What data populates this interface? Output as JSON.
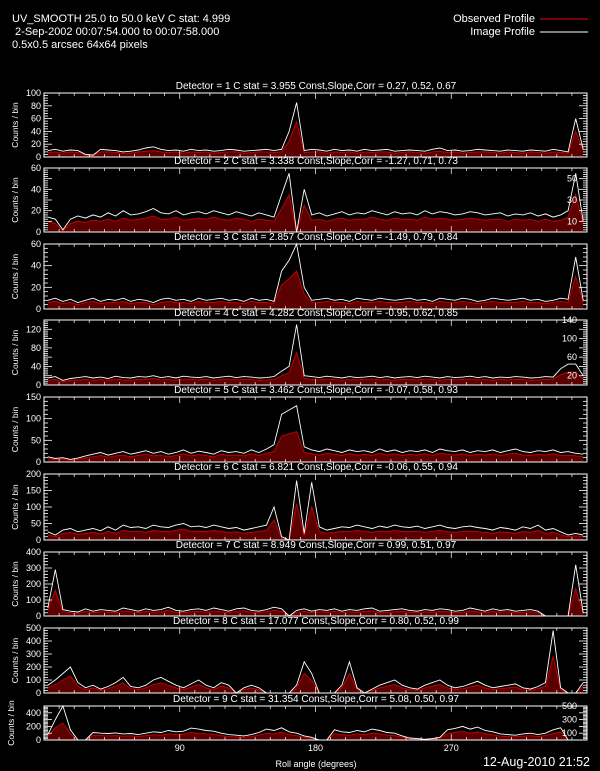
{
  "header": {
    "line1": "UV_SMOOTH 25.0 to 50.0 keV C stat: 4.999",
    "line2": " 2-Sep-2002 00:07:54.000 to 00:07:58.000",
    "line3": "0.5x0.5 arcsec 64x64 pixels"
  },
  "legend": {
    "observed": "Observed Profile",
    "image": "Image Profile",
    "observed_color": "#c00000",
    "image_color": "#ffffff"
  },
  "footer": {
    "xlabel": "Roll angle (degrees)",
    "date": "12-Aug-2010 21:52"
  },
  "colors": {
    "background": "#000000",
    "observed_fill": "#5a0000"
  },
  "chart_data": [
    {
      "type": "line",
      "title": "Detector = 1  C stat = 3.955  Const,Slope,Corr = 0.27, 0.52, 0.67",
      "ylabel": "Counts / bin",
      "xlim": [
        0,
        360
      ],
      "ylim": [
        0,
        100
      ],
      "yticks": [
        0,
        20,
        40,
        60,
        80,
        100
      ],
      "image": [
        10,
        12,
        9,
        11,
        10,
        4,
        3,
        12,
        11,
        10,
        8,
        9,
        11,
        14,
        16,
        12,
        10,
        11,
        9,
        12,
        10,
        11,
        9,
        10,
        12,
        11,
        9,
        10,
        11,
        12,
        10,
        12,
        40,
        85,
        10,
        12,
        11,
        9,
        12,
        10,
        11,
        9,
        12,
        10,
        11,
        12,
        9,
        10,
        11,
        10,
        9,
        12,
        14,
        10,
        11,
        9,
        10,
        12,
        11,
        10,
        9,
        11,
        10,
        9,
        11,
        10,
        9,
        12,
        10,
        8,
        60,
        12
      ],
      "observed": [
        7,
        8,
        6,
        8,
        7,
        3,
        2,
        8,
        8,
        7,
        6,
        6,
        8,
        9,
        10,
        8,
        7,
        8,
        6,
        8,
        7,
        8,
        6,
        7,
        8,
        8,
        6,
        7,
        8,
        8,
        7,
        8,
        25,
        55,
        7,
        8,
        8,
        6,
        8,
        7,
        8,
        6,
        8,
        7,
        8,
        8,
        6,
        7,
        8,
        7,
        6,
        8,
        9,
        7,
        8,
        6,
        7,
        8,
        8,
        7,
        6,
        8,
        7,
        6,
        8,
        7,
        6,
        8,
        7,
        6,
        40,
        9
      ]
    },
    {
      "type": "line",
      "title": "Detector = 2  C stat = 3.338  Const,Slope,Corr = -1.27, 0.71, 0.73",
      "ylabel": "Counts / bin",
      "xlim": [
        0,
        360
      ],
      "ylim": [
        0,
        60
      ],
      "yticks": [
        0,
        10,
        20,
        30,
        40,
        50,
        60
      ],
      "image": [
        14,
        12,
        2,
        12,
        15,
        13,
        16,
        14,
        18,
        15,
        20,
        16,
        17,
        19,
        22,
        18,
        17,
        20,
        16,
        18,
        19,
        17,
        20,
        18,
        16,
        19,
        17,
        15,
        18,
        16,
        14,
        35,
        55,
        0,
        40,
        16,
        18,
        15,
        17,
        19,
        16,
        18,
        17,
        20,
        18,
        16,
        19,
        17,
        18,
        16,
        20,
        17,
        19,
        18,
        16,
        17,
        19,
        18,
        16,
        17,
        18,
        15,
        17,
        16,
        18,
        15,
        17,
        14,
        16,
        20,
        55,
        10
      ],
      "observed": [
        10,
        8,
        1,
        8,
        10,
        9,
        11,
        10,
        12,
        10,
        13,
        11,
        12,
        13,
        15,
        12,
        12,
        14,
        11,
        12,
        13,
        12,
        14,
        12,
        11,
        13,
        12,
        10,
        12,
        11,
        10,
        22,
        35,
        0,
        25,
        11,
        12,
        10,
        12,
        13,
        11,
        12,
        12,
        14,
        12,
        11,
        13,
        12,
        12,
        11,
        14,
        12,
        13,
        12,
        11,
        12,
        13,
        12,
        11,
        12,
        12,
        10,
        12,
        11,
        12,
        10,
        12,
        10,
        11,
        14,
        35,
        7
      ]
    },
    {
      "type": "line",
      "title": "Detector = 3  C stat = 2.857  Const,Slope,Corr = -1.49, 0.79, 0.84",
      "ylabel": "Counts / bin",
      "xlim": [
        0,
        360
      ],
      "ylim": [
        0,
        60
      ],
      "yticks": [
        0,
        20,
        40,
        60
      ],
      "image": [
        8,
        10,
        7,
        9,
        6,
        8,
        10,
        7,
        9,
        8,
        10,
        7,
        9,
        8,
        6,
        9,
        10,
        8,
        9,
        7,
        10,
        8,
        9,
        10,
        8,
        9,
        7,
        10,
        8,
        9,
        7,
        35,
        45,
        62,
        20,
        8,
        9,
        10,
        8,
        9,
        7,
        10,
        9,
        8,
        10,
        9,
        8,
        9,
        10,
        8,
        9,
        7,
        10,
        9,
        8,
        10,
        9,
        7,
        8,
        10,
        9,
        8,
        9,
        10,
        8,
        9,
        7,
        8,
        10,
        9,
        48,
        8
      ],
      "observed": [
        6,
        7,
        5,
        6,
        4,
        6,
        7,
        5,
        6,
        6,
        7,
        5,
        6,
        6,
        4,
        6,
        7,
        6,
        6,
        5,
        7,
        6,
        6,
        7,
        6,
        6,
        5,
        7,
        6,
        6,
        5,
        22,
        28,
        35,
        14,
        6,
        6,
        7,
        6,
        6,
        5,
        7,
        6,
        6,
        7,
        6,
        6,
        6,
        7,
        6,
        6,
        5,
        7,
        6,
        6,
        7,
        6,
        5,
        6,
        7,
        6,
        6,
        6,
        7,
        6,
        6,
        5,
        6,
        7,
        6,
        30,
        6
      ]
    },
    {
      "type": "line",
      "title": "Detector = 4  C stat = 4.282  Const,Slope,Corr = -0.95, 0.62, 0.85",
      "ylabel": "Counts / bin",
      "xlim": [
        0,
        360
      ],
      "ylim": [
        0,
        140
      ],
      "yticks": [
        0,
        20,
        40,
        60,
        80,
        100,
        120,
        140
      ],
      "image": [
        15,
        18,
        10,
        14,
        16,
        18,
        15,
        17,
        14,
        19,
        16,
        15,
        18,
        17,
        20,
        16,
        18,
        15,
        19,
        17,
        16,
        18,
        15,
        17,
        19,
        16,
        18,
        17,
        15,
        16,
        18,
        30,
        40,
        130,
        20,
        18,
        16,
        19,
        17,
        15,
        18,
        16,
        17,
        19,
        16,
        18,
        15,
        17,
        18,
        16,
        19,
        17,
        15,
        18,
        16,
        17,
        19,
        16,
        18,
        15,
        17,
        16,
        18,
        17,
        15,
        16,
        18,
        17,
        35,
        45,
        45,
        20
      ],
      "observed": [
        10,
        12,
        7,
        10,
        11,
        12,
        10,
        12,
        10,
        13,
        11,
        10,
        12,
        12,
        14,
        11,
        12,
        10,
        13,
        12,
        11,
        12,
        10,
        12,
        13,
        11,
        12,
        12,
        10,
        11,
        12,
        20,
        26,
        70,
        14,
        12,
        11,
        13,
        12,
        10,
        12,
        11,
        12,
        13,
        11,
        12,
        10,
        12,
        12,
        11,
        13,
        12,
        10,
        12,
        11,
        12,
        13,
        11,
        12,
        10,
        12,
        11,
        12,
        12,
        10,
        11,
        12,
        12,
        22,
        28,
        28,
        13
      ]
    },
    {
      "type": "line",
      "title": "Detector = 5  C stat = 3.462  Const,Slope,Corr = -0.07, 0.58, 0.93",
      "ylabel": "Counts / bin",
      "xlim": [
        0,
        360
      ],
      "ylim": [
        0,
        150
      ],
      "yticks": [
        0,
        50,
        100,
        150
      ],
      "image": [
        12,
        8,
        10,
        6,
        9,
        14,
        18,
        22,
        16,
        20,
        24,
        18,
        22,
        26,
        20,
        24,
        18,
        22,
        28,
        20,
        25,
        22,
        18,
        26,
        22,
        24,
        20,
        28,
        22,
        30,
        40,
        110,
        120,
        130,
        35,
        28,
        24,
        30,
        26,
        22,
        28,
        24,
        26,
        22,
        30,
        24,
        28,
        22,
        26,
        24,
        28,
        22,
        30,
        26,
        24,
        28,
        22,
        26,
        24,
        28,
        22,
        26,
        30,
        24,
        22,
        26,
        24,
        28,
        22,
        24,
        20,
        18
      ],
      "observed": [
        8,
        5,
        7,
        4,
        6,
        10,
        12,
        15,
        11,
        14,
        16,
        12,
        15,
        18,
        14,
        16,
        12,
        15,
        19,
        14,
        17,
        15,
        12,
        18,
        15,
        16,
        14,
        19,
        15,
        20,
        25,
        60,
        65,
        70,
        22,
        19,
        16,
        20,
        18,
        15,
        19,
        16,
        18,
        15,
        20,
        16,
        19,
        15,
        18,
        16,
        19,
        15,
        20,
        18,
        16,
        19,
        15,
        18,
        16,
        19,
        15,
        18,
        20,
        16,
        15,
        18,
        16,
        19,
        15,
        16,
        14,
        12
      ]
    },
    {
      "type": "line",
      "title": "Detector = 6  C stat = 6.821  Const,Slope,Corr = -0.06, 0.55, 0.94",
      "ylabel": "Counts / bin",
      "xlim": [
        0,
        360
      ],
      "ylim": [
        0,
        200
      ],
      "yticks": [
        0,
        50,
        100,
        150,
        200
      ],
      "image": [
        25,
        15,
        30,
        35,
        25,
        30,
        35,
        28,
        40,
        30,
        45,
        38,
        40,
        35,
        45,
        40,
        38,
        45,
        50,
        40,
        42,
        38,
        45,
        40,
        35,
        38,
        30,
        35,
        40,
        45,
        100,
        10,
        0,
        180,
        20,
        175,
        40,
        30,
        35,
        40,
        38,
        45,
        40,
        35,
        42,
        38,
        45,
        40,
        38,
        42,
        35,
        40,
        45,
        38,
        35,
        40,
        42,
        38,
        35,
        30,
        38,
        35,
        30,
        40,
        35,
        45,
        30,
        35,
        25,
        15,
        20,
        15
      ],
      "observed": [
        16,
        10,
        20,
        23,
        16,
        20,
        23,
        18,
        26,
        20,
        29,
        25,
        26,
        23,
        29,
        26,
        25,
        29,
        33,
        26,
        27,
        25,
        29,
        26,
        23,
        25,
        20,
        23,
        26,
        29,
        60,
        6,
        0,
        110,
        13,
        100,
        26,
        20,
        23,
        26,
        25,
        29,
        26,
        23,
        27,
        25,
        29,
        26,
        25,
        27,
        23,
        26,
        29,
        25,
        23,
        26,
        27,
        25,
        23,
        20,
        25,
        23,
        20,
        26,
        23,
        29,
        20,
        23,
        16,
        10,
        13,
        10
      ]
    },
    {
      "type": "line",
      "title": "Detector = 7  C stat = 8.949  Const,Slope,Corr = 0.99, 0.51, 0.97",
      "ylabel": "Counts / bin",
      "xlim": [
        0,
        360
      ],
      "ylim": [
        0,
        400
      ],
      "yticks": [
        0,
        100,
        200,
        300,
        400
      ],
      "image": [
        50,
        290,
        40,
        30,
        25,
        45,
        30,
        40,
        35,
        30,
        50,
        40,
        30,
        45,
        35,
        40,
        55,
        35,
        30,
        40,
        45,
        35,
        50,
        40,
        30,
        45,
        50,
        35,
        30,
        40,
        55,
        45,
        0,
        35,
        45,
        30,
        40,
        35,
        45,
        30,
        40,
        35,
        45,
        50,
        30,
        35,
        40,
        45,
        35,
        30,
        40,
        35,
        45,
        40,
        30,
        35,
        50,
        40,
        30,
        45,
        35,
        40,
        30,
        35,
        40,
        30,
        0,
        0,
        0,
        0,
        320,
        20
      ],
      "observed": [
        33,
        160,
        26,
        20,
        16,
        29,
        20,
        26,
        23,
        20,
        33,
        26,
        20,
        29,
        23,
        26,
        36,
        23,
        20,
        26,
        29,
        23,
        33,
        26,
        20,
        29,
        33,
        23,
        20,
        26,
        36,
        29,
        0,
        23,
        29,
        20,
        26,
        23,
        29,
        20,
        26,
        23,
        29,
        33,
        20,
        23,
        26,
        29,
        23,
        20,
        26,
        23,
        29,
        26,
        20,
        23,
        33,
        26,
        20,
        29,
        23,
        26,
        20,
        23,
        26,
        20,
        0,
        0,
        0,
        0,
        170,
        13
      ]
    },
    {
      "type": "line",
      "title": "Detector = 8  C stat = 17.077  Const,Slope,Corr = 0.80, 0.52, 0.99",
      "ylabel": "Counts / bin",
      "xlim": [
        0,
        360
      ],
      "ylim": [
        0,
        500
      ],
      "yticks": [
        0,
        100,
        200,
        300,
        400,
        500
      ],
      "image": [
        60,
        100,
        150,
        200,
        80,
        40,
        60,
        30,
        50,
        80,
        120,
        50,
        40,
        60,
        100,
        120,
        90,
        60,
        40,
        70,
        100,
        60,
        40,
        80,
        60,
        0,
        40,
        60,
        40,
        0,
        0,
        0,
        0,
        60,
        240,
        150,
        0,
        0,
        0,
        60,
        240,
        40,
        0,
        30,
        60,
        80,
        100,
        60,
        40,
        30,
        60,
        80,
        100,
        60,
        40,
        50,
        70,
        90,
        60,
        40,
        50,
        60,
        70,
        40,
        30,
        50,
        80,
        480,
        40,
        0,
        0,
        80
      ],
      "observed": [
        40,
        65,
        100,
        130,
        52,
        26,
        39,
        20,
        33,
        52,
        78,
        33,
        26,
        39,
        65,
        78,
        59,
        39,
        26,
        46,
        65,
        39,
        26,
        52,
        39,
        0,
        26,
        39,
        26,
        0,
        0,
        0,
        0,
        39,
        150,
        98,
        0,
        0,
        0,
        39,
        150,
        26,
        0,
        20,
        39,
        52,
        65,
        39,
        26,
        20,
        39,
        52,
        65,
        39,
        26,
        33,
        46,
        59,
        39,
        26,
        33,
        39,
        46,
        26,
        20,
        33,
        52,
        280,
        26,
        0,
        0,
        52
      ]
    },
    {
      "type": "line",
      "title": "Detector = 9  C stat = 31.354  Const,Slope,Corr = 5.08, 0.50, 0.97",
      "ylabel": "Counts / bin",
      "xlabel": "Roll angle (degrees)",
      "xlim": [
        0,
        360
      ],
      "ylim": [
        0,
        500
      ],
      "yticks": [
        0,
        100,
        200,
        300,
        400,
        500
      ],
      "xticks": [
        90,
        180,
        270
      ],
      "image": [
        80,
        300,
        520,
        150,
        0,
        0,
        110,
        100,
        95,
        105,
        90,
        95,
        80,
        100,
        120,
        110,
        140,
        120,
        130,
        175,
        160,
        140,
        130,
        100,
        80,
        70,
        60,
        80,
        110,
        160,
        140,
        180,
        120,
        100,
        60,
        40,
        0,
        0,
        150,
        120,
        110,
        140,
        120,
        160,
        140,
        110,
        100,
        60,
        30,
        20,
        10,
        20,
        40,
        150,
        170,
        200,
        160,
        190,
        140,
        120,
        90,
        80,
        70,
        90,
        100,
        80,
        100,
        150,
        180,
        0,
        0,
        0
      ],
      "observed": [
        50,
        180,
        250,
        90,
        0,
        0,
        70,
        65,
        60,
        65,
        58,
        60,
        52,
        65,
        78,
        70,
        90,
        78,
        85,
        110,
        100,
        90,
        85,
        65,
        52,
        45,
        40,
        52,
        70,
        100,
        90,
        115,
        78,
        65,
        40,
        26,
        0,
        0,
        95,
        78,
        70,
        90,
        78,
        100,
        90,
        70,
        65,
        40,
        20,
        13,
        7,
        13,
        26,
        95,
        110,
        130,
        100,
        120,
        90,
        78,
        58,
        52,
        45,
        58,
        65,
        52,
        65,
        95,
        115,
        0,
        0,
        0
      ]
    }
  ]
}
